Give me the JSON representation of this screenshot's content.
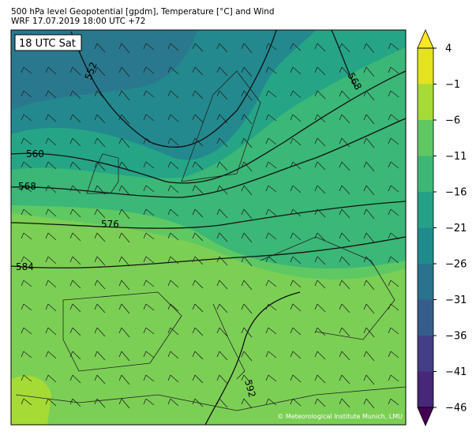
{
  "header": {
    "line1": "500 hPa level Geopotential [gpdm], Temperature [°C] and Wind",
    "line2": "WRF 17.07.2019 18:00 UTC +72"
  },
  "map": {
    "time_label": "18 UTC Sat",
    "contour_labels": [
      552,
      560,
      568,
      576,
      584,
      592,
      568
    ],
    "credit": "© Meteorological Institute Munich, LMU"
  },
  "colorbar": {
    "lim": [
      -46,
      4
    ],
    "ticks": [
      {
        "value": 4,
        "label": "4"
      },
      {
        "value": -1,
        "label": "−1"
      },
      {
        "value": -6,
        "label": "−6"
      },
      {
        "value": -11,
        "label": "−11"
      },
      {
        "value": -16,
        "label": "−16"
      },
      {
        "value": -21,
        "label": "−21"
      },
      {
        "value": -26,
        "label": "−26"
      },
      {
        "value": -31,
        "label": "−31"
      },
      {
        "value": -36,
        "label": "−36"
      },
      {
        "value": -41,
        "label": "−41"
      },
      {
        "value": -46,
        "label": "−46"
      }
    ],
    "colors": [
      "#e4e31d",
      "#a6db35",
      "#5fc762",
      "#3cb776",
      "#24a187",
      "#1f8b8d",
      "#2a728e",
      "#355d8c",
      "#433e85",
      "#472777"
    ],
    "over_color": "#fde725",
    "under_color": "#440154"
  }
}
